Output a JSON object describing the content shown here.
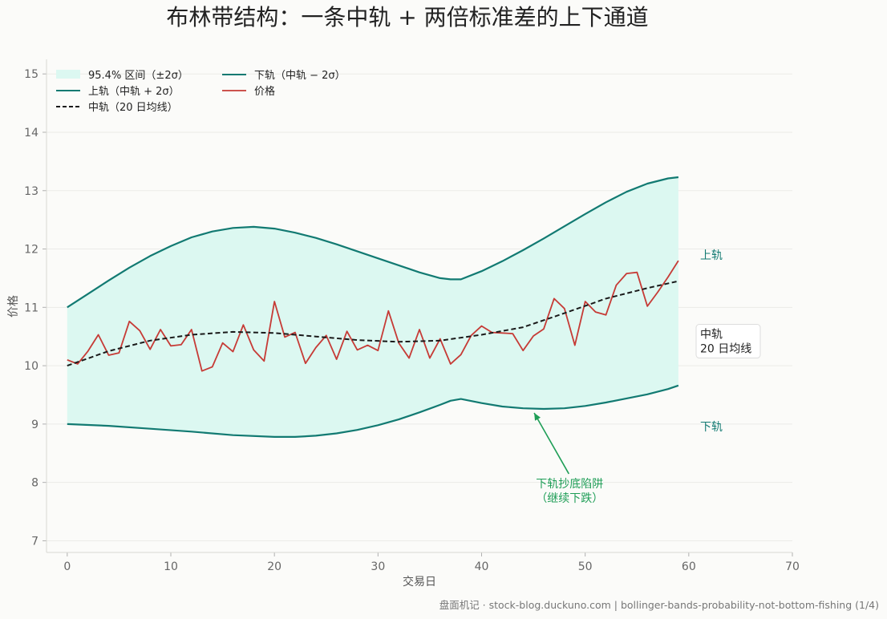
{
  "chart_data": {
    "type": "line",
    "title": "布林带结构：一条中轨 + 两倍标准差的上下通道",
    "xlabel": "交易日",
    "ylabel": "价格",
    "xlim": [
      -2,
      70
    ],
    "ylim": [
      6.8,
      15.25
    ],
    "xticks": [
      0,
      10,
      20,
      30,
      40,
      50,
      60,
      70
    ],
    "yticks": [
      7,
      8,
      9,
      10,
      11,
      12,
      13,
      14,
      15
    ],
    "grid": "horizontal",
    "legend_position": "top-left",
    "legend": [
      {
        "key": "band",
        "label": "95.4% 区间（±2σ）"
      },
      {
        "key": "upper",
        "label": "上轨（中轨 + 2σ）"
      },
      {
        "key": "mid",
        "label": "中轨（20 日均线）"
      },
      {
        "key": "lower",
        "label": "下轨（中轨 − 2σ）"
      },
      {
        "key": "price",
        "label": "价格"
      }
    ],
    "series": [
      {
        "key": "upper",
        "name": "上轨（中轨 + 2σ）",
        "x": [
          0,
          2,
          4,
          6,
          8,
          10,
          12,
          14,
          16,
          18,
          20,
          22,
          24,
          26,
          28,
          30,
          32,
          34,
          36,
          37,
          38,
          40,
          42,
          44,
          46,
          48,
          50,
          52,
          54,
          56,
          58,
          59
        ],
        "values": [
          11.0,
          11.23,
          11.46,
          11.68,
          11.88,
          12.05,
          12.2,
          12.3,
          12.36,
          12.38,
          12.35,
          12.28,
          12.19,
          12.08,
          11.96,
          11.84,
          11.72,
          11.6,
          11.5,
          11.48,
          11.48,
          11.62,
          11.79,
          11.98,
          12.18,
          12.39,
          12.6,
          12.8,
          12.98,
          13.12,
          13.21,
          13.23
        ]
      },
      {
        "key": "lower",
        "name": "下轨（中轨 − 2σ）",
        "x": [
          0,
          4,
          8,
          12,
          16,
          20,
          22,
          24,
          26,
          28,
          30,
          32,
          34,
          36,
          37,
          38,
          40,
          42,
          44,
          46,
          48,
          50,
          52,
          54,
          56,
          58,
          59
        ],
        "values": [
          9.0,
          8.97,
          8.92,
          8.87,
          8.81,
          8.78,
          8.78,
          8.8,
          8.84,
          8.9,
          8.98,
          9.08,
          9.2,
          9.33,
          9.4,
          9.43,
          9.36,
          9.3,
          9.27,
          9.26,
          9.27,
          9.31,
          9.37,
          9.44,
          9.51,
          9.6,
          9.66
        ]
      },
      {
        "key": "mid",
        "name": "中轨（20 日均线）",
        "x": [
          0,
          4,
          8,
          12,
          16,
          20,
          24,
          28,
          32,
          36,
          40,
          44,
          48,
          52,
          56,
          59
        ],
        "values": [
          10.0,
          10.25,
          10.43,
          10.53,
          10.58,
          10.56,
          10.5,
          10.44,
          10.41,
          10.43,
          10.53,
          10.66,
          10.9,
          11.15,
          11.33,
          11.45
        ]
      },
      {
        "key": "price",
        "name": "价格",
        "x": [
          0,
          1,
          2,
          3,
          4,
          5,
          6,
          7,
          8,
          9,
          10,
          11,
          12,
          13,
          14,
          15,
          16,
          17,
          18,
          19,
          20,
          21,
          22,
          23,
          24,
          25,
          26,
          27,
          28,
          29,
          30,
          31,
          32,
          33,
          34,
          35,
          36,
          37,
          38,
          39,
          40,
          41,
          42,
          43,
          44,
          45,
          46,
          47,
          48,
          49,
          50,
          51,
          52,
          53,
          54,
          55,
          56,
          57,
          58,
          59
        ],
        "values": [
          10.1,
          10.03,
          10.25,
          10.53,
          10.18,
          10.22,
          10.76,
          10.6,
          10.28,
          10.62,
          10.34,
          10.36,
          10.62,
          9.91,
          9.98,
          10.39,
          10.24,
          10.7,
          10.27,
          10.08,
          11.1,
          10.49,
          10.57,
          10.04,
          10.31,
          10.52,
          10.11,
          10.59,
          10.27,
          10.35,
          10.26,
          10.94,
          10.39,
          10.13,
          10.62,
          10.13,
          10.46,
          10.03,
          10.19,
          10.52,
          10.68,
          10.57,
          10.56,
          10.55,
          10.26,
          10.51,
          10.63,
          11.15,
          10.98,
          10.35,
          11.1,
          10.92,
          10.87,
          11.38,
          11.58,
          11.6,
          11.02,
          11.26,
          11.52,
          11.8
        ]
      }
    ],
    "right_labels": [
      {
        "key": "upper",
        "text": "上轨",
        "y": 11.9
      },
      {
        "key": "mid",
        "text": "中轨\n20 日均线",
        "y": 10.42
      },
      {
        "key": "lower",
        "text": "下轨",
        "y": 8.96
      }
    ],
    "annotation": {
      "text_line1": "下轨抄底陷阱",
      "text_line2": "（继续下跌）",
      "point_x": 45,
      "point_y": 9.26,
      "text_x": 48.5,
      "text_y": 7.9
    },
    "colors": {
      "band_fill": "#dcf8f1",
      "upper": "#127a72",
      "lower": "#127a72",
      "mid": "#1a1a1a",
      "price": "#c63b36",
      "annotation": "#1f9e57",
      "grid": "#ebebe8"
    }
  },
  "footer": "盘面机记 · stock-blog.duckuno.com | bollinger-bands-probability-not-bottom-fishing (1/4)"
}
